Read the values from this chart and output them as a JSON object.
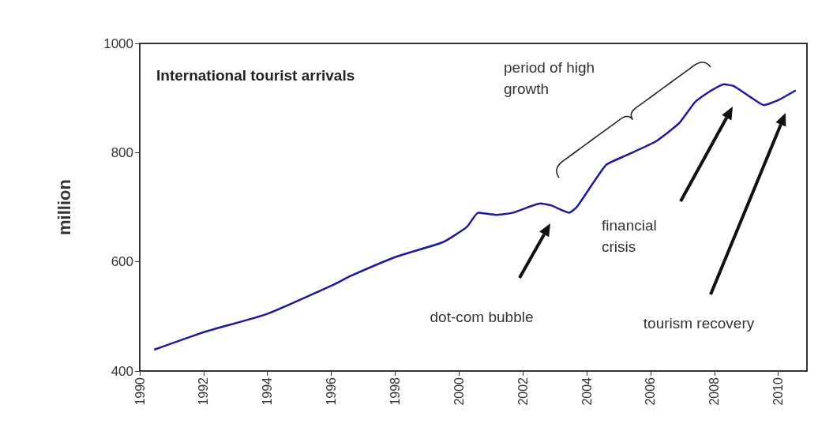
{
  "chart_data": {
    "type": "line",
    "title": "International tourist arrivals",
    "ylabel": "million",
    "xlim": [
      1990,
      2010.9
    ],
    "xticks": [
      1990,
      1992,
      1994,
      1996,
      1998,
      2000,
      2002,
      2004,
      2006,
      2008,
      2010
    ],
    "ylim": [
      400,
      1000
    ],
    "yticks": [
      400,
      600,
      800,
      1000
    ],
    "grid": false,
    "marker": "none",
    "line_style": "solid",
    "series": [
      {
        "color": "#1a1aa0",
        "x": [
          1990.45,
          1992.05,
          1993.96,
          1996.1,
          1996.6,
          1998.07,
          1999.5,
          2000.25,
          2000.6,
          2001.2,
          2001.7,
          2002.55,
          2002.9,
          2003.45,
          2003.7,
          2004.6,
          2005.2,
          2006.15,
          2006.9,
          2007.4,
          2007.8,
          2008.3,
          2008.6,
          2009.1,
          2009.55,
          2010.0,
          2010.55
        ],
        "values": [
          439,
          472,
          504,
          559,
          574,
          610,
          636,
          664,
          690,
          686,
          690,
          707,
          703,
          690,
          701,
          777,
          794,
          820,
          854,
          893,
          910,
          925,
          922,
          903,
          887,
          896,
          914
        ]
      }
    ],
    "annotations": [
      "period of high growth",
      "dot-com bubble",
      "financial crisis",
      "tourism recovery"
    ]
  }
}
